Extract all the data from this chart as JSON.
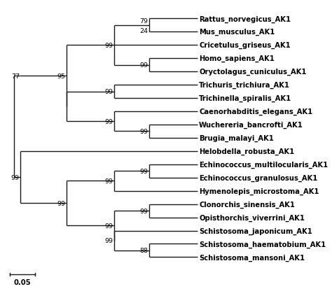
{
  "taxa_order": [
    "Rattus_norvegicus_AK1",
    "Mus_musculus_AK1",
    "Cricetulus_griseus_AK1",
    "Homo_sapiens_AK1",
    "Oryctolagus_cuniculus_AK1",
    "Trichuris_trichiura_AK1",
    "Trichinella_spiralis_AK1",
    "Caenorhabditis_elegans_AK1",
    "Wuchereria_bancrofti_AK1",
    "Brugia_malayi_AK1",
    "Helobdella_robusta_AK1",
    "Echinococcus_multilocularis_AK1",
    "Echinococcus_granulosus_AK1",
    "Hymenolepis_microstoma_AK1",
    "Clonorchis_sinensis_AK1",
    "Opisthorchis_viverrini_AK1",
    "Schistosoma_japonicum_AK1",
    "Schistosoma_haematobium_AK1",
    "Schistosoma_mansoni_AK1"
  ],
  "background_color": "#ffffff",
  "line_color": "#1a1a1a",
  "text_color": "#000000",
  "font_size": 7.2,
  "bootstrap_font_size": 6.8,
  "scale_bar_label": "0.05",
  "line_width": 1.0
}
